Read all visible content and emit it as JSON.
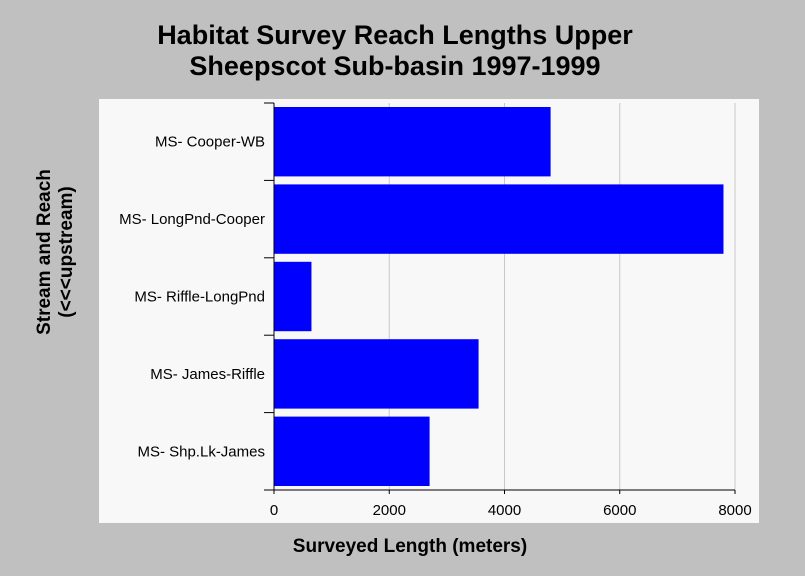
{
  "chart_data": {
    "type": "bar",
    "orientation": "horizontal",
    "title_line1": "Habitat Survey Reach Lengths Upper",
    "title_line2": "Sheepscot Sub-basin 1997-1999",
    "xlabel": "Surveyed Length (meters)",
    "ylabel_line1": "Stream and Reach",
    "ylabel_line2": "(<<<upstream)",
    "categories": [
      "MS- Cooper-WB",
      "MS- LongPnd-Cooper",
      "MS- Riffle-LongPnd",
      "MS- James-Riffle",
      "MS- Shp.Lk-James"
    ],
    "values": [
      4800,
      7800,
      650,
      3550,
      2700
    ],
    "xlim": [
      0,
      8000
    ],
    "xticks": [
      0,
      2000,
      4000,
      6000,
      8000
    ],
    "grid": "vertical",
    "bar_color": "#0000ff",
    "background": "#c0c0c0",
    "plot_background": "#f8f8f8"
  }
}
